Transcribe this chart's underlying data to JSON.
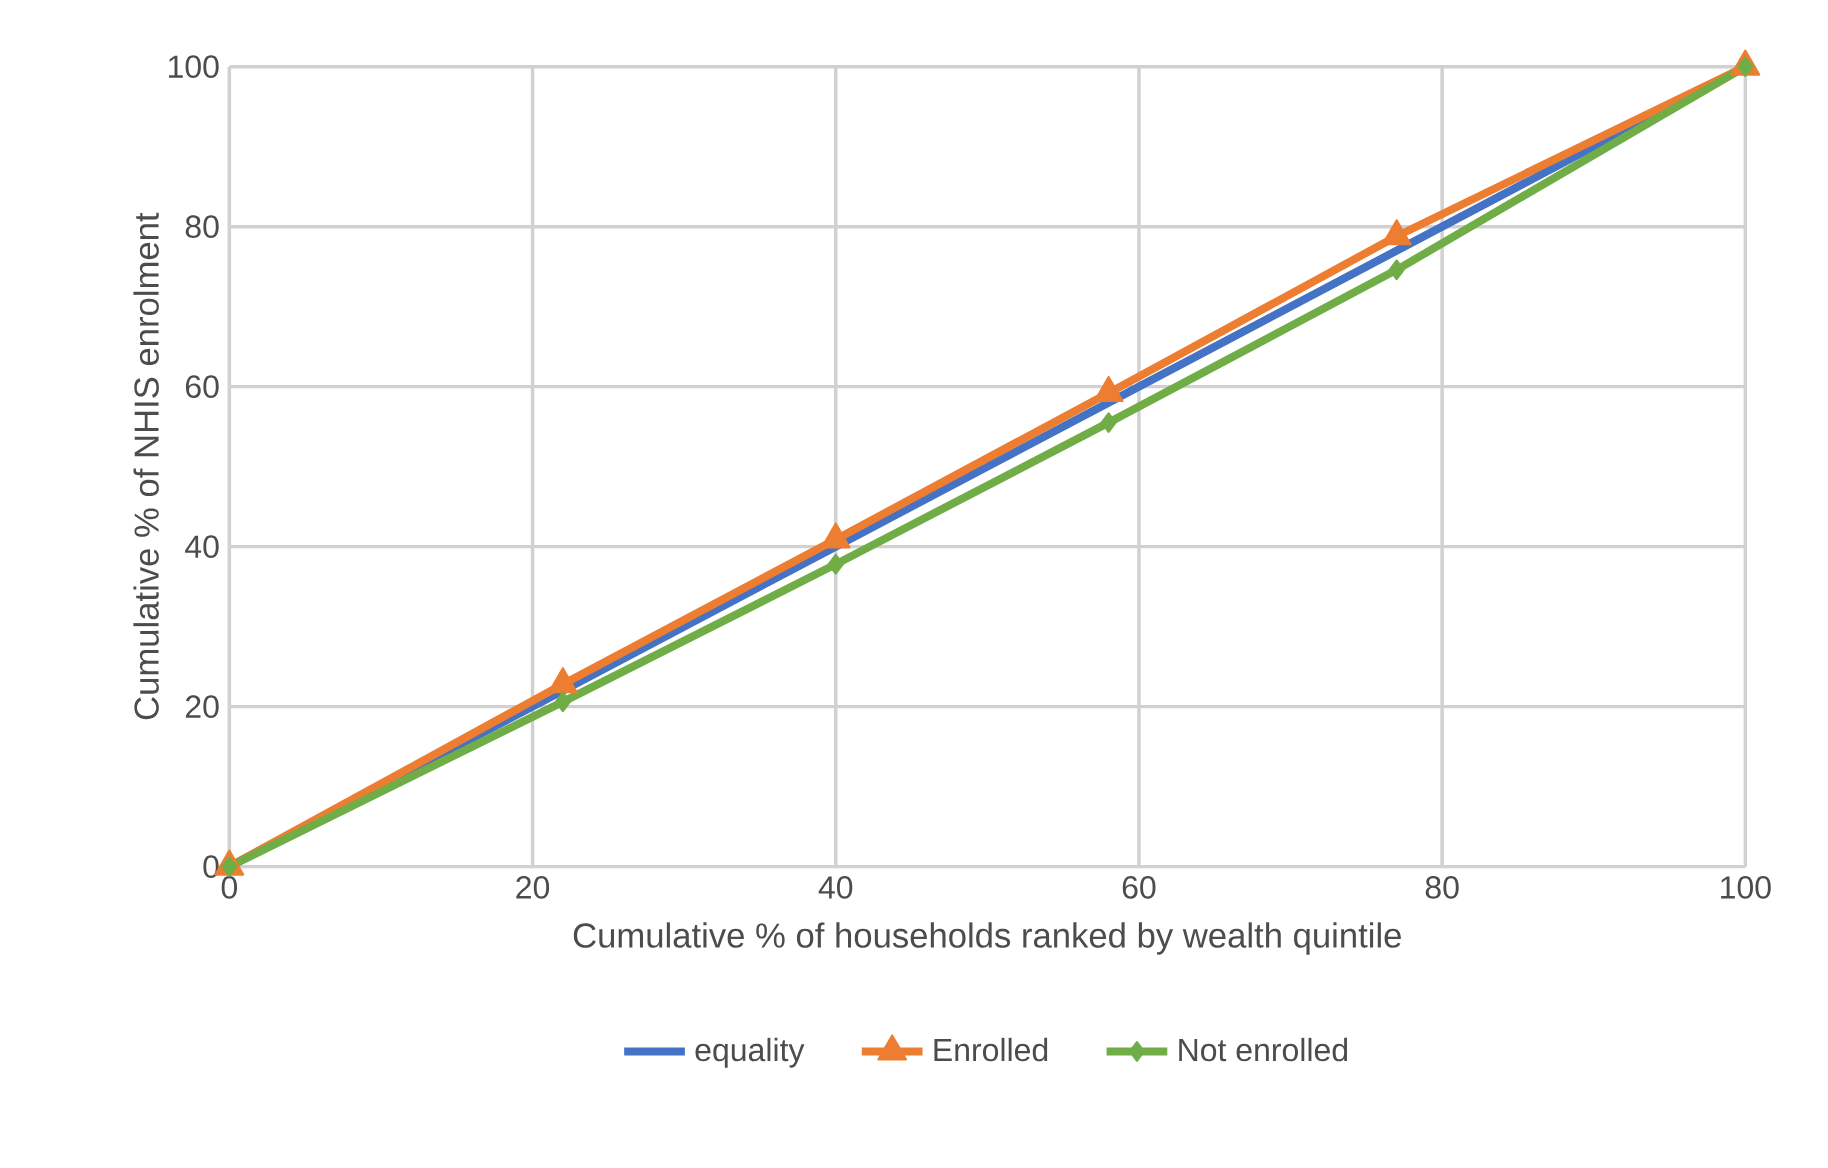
{
  "chart_data": {
    "type": "line",
    "xlabel": "Cumulative % of households ranked by wealth quintile",
    "ylabel": "Cumulative % of NHIS enrolment",
    "x": [
      0,
      22,
      40,
      58,
      77,
      100
    ],
    "series": [
      {
        "name": "equality",
        "color": "#4472c4",
        "marker": "none",
        "values": [
          0,
          22,
          40,
          58,
          77,
          100
        ]
      },
      {
        "name": "Enrolled",
        "color": "#ed7d31",
        "marker": "triangle",
        "values": [
          0,
          22.8,
          40.9,
          59.2,
          78.8,
          100
        ]
      },
      {
        "name": "Not enrolled",
        "color": "#70ad47",
        "marker": "diamond",
        "values": [
          0,
          20.6,
          37.8,
          55.5,
          74.6,
          100
        ]
      }
    ],
    "xlim": [
      0,
      100
    ],
    "ylim": [
      0,
      100
    ],
    "xticks": [
      0,
      20,
      40,
      60,
      80,
      100
    ],
    "yticks": [
      0,
      20,
      40,
      60,
      80,
      100
    ],
    "grid": true,
    "legend": "bottom",
    "line_style": "solid"
  }
}
